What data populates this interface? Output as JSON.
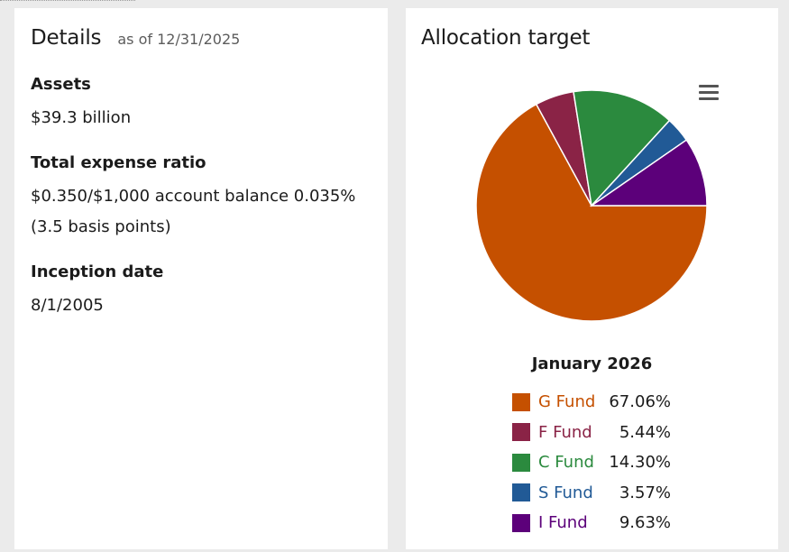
{
  "details": {
    "title": "Details",
    "as_of": "as of 12/31/2025",
    "assets_label": "Assets",
    "assets_value": "$39.3 billion",
    "expense_label": "Total expense ratio",
    "expense_value_line1": "$0.350/$1,000 account balance 0.035%",
    "expense_value_line2": "(3.5 basis points)",
    "inception_label": "Inception date",
    "inception_value": "8/1/2005"
  },
  "allocation": {
    "title": "Allocation target",
    "menu_icon": "hamburger-menu-icon"
  },
  "chart_data": {
    "type": "pie",
    "title": "January 2026",
    "slices": [
      {
        "name": "G Fund",
        "value": 67.06,
        "label": "67.06%",
        "color": "#c55000"
      },
      {
        "name": "F Fund",
        "value": 5.44,
        "label": "5.44%",
        "color": "#8a2346"
      },
      {
        "name": "C Fund",
        "value": 14.3,
        "label": "14.30%",
        "color": "#2b8a3e"
      },
      {
        "name": "S Fund",
        "value": 3.57,
        "label": "3.57%",
        "color": "#215a96"
      },
      {
        "name": "I Fund",
        "value": 9.63,
        "label": "9.63%",
        "color": "#5c007a"
      }
    ]
  }
}
